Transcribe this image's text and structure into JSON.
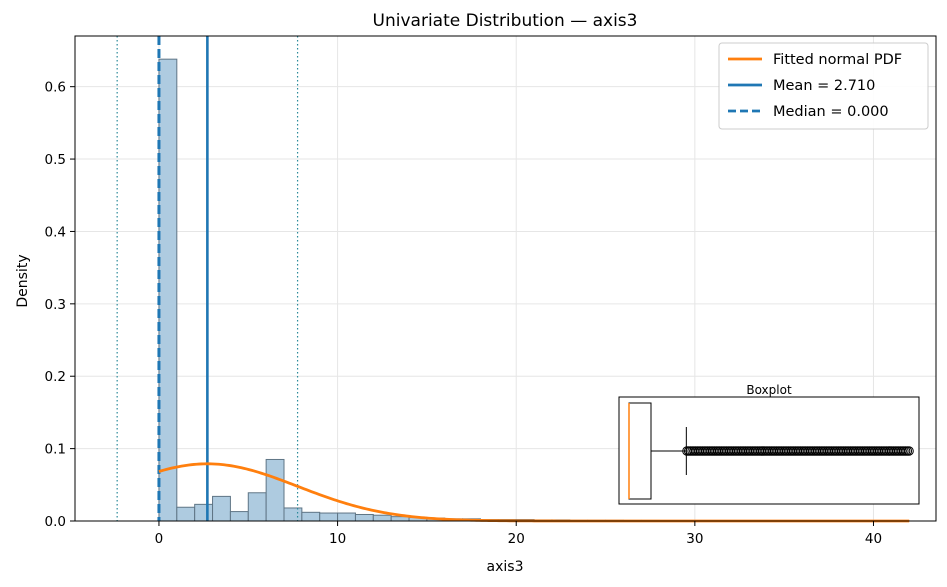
{
  "chart_data": {
    "type": "histogram",
    "title": "Univariate Distribution — axis3",
    "xlabel": "axis3",
    "ylabel": "Density",
    "xlim": [
      -4.7,
      43.5
    ],
    "ylim": [
      0,
      0.67
    ],
    "grid": true,
    "x_ticks": [
      0,
      10,
      20,
      30,
      40
    ],
    "y_ticks": [
      0.0,
      0.1,
      0.2,
      0.3,
      0.4,
      0.5,
      0.6
    ],
    "x_tick_labels": [
      "0",
      "10",
      "20",
      "30",
      "40"
    ],
    "y_tick_labels": [
      "0.0",
      "0.1",
      "0.2",
      "0.3",
      "0.4",
      "0.5",
      "0.6"
    ],
    "histogram": {
      "bin_start": 0,
      "bin_width": 1.0,
      "densities": [
        0.638,
        0.019,
        0.023,
        0.034,
        0.013,
        0.039,
        0.085,
        0.018,
        0.012,
        0.011,
        0.011,
        0.009,
        0.008,
        0.006,
        0.005,
        0.004,
        0.003,
        0.003,
        0.002,
        0.002,
        0.002,
        0.0015,
        0.0015,
        0.001,
        0.001,
        0.001,
        0.0008,
        0.0008,
        0.0006,
        0.0006,
        0.0005,
        0.0005,
        0.0004,
        0.0004,
        0.0004,
        0.0003,
        0.0003,
        0.0003,
        0.0003,
        0.0002,
        0.0002,
        0.0002
      ],
      "fill_color": "#aecbe0",
      "edge_color": "#5f7585"
    },
    "fitted_normal": {
      "mean": 2.71,
      "sd": 5.05,
      "x_range": [
        0,
        42
      ],
      "color": "#ff7f0e"
    },
    "mean": 2.71,
    "median": 0.0,
    "sd_lines": [
      -2.34,
      7.76
    ],
    "sd_line_color": "#2a8a9a",
    "line_color": "#1f77b4",
    "legend": {
      "position": "upper right",
      "entries": [
        {
          "label": "Fitted normal PDF",
          "style": "solid",
          "color": "#ff7f0e"
        },
        {
          "label": "Mean = 2.710",
          "style": "solid",
          "color": "#1f77b4"
        },
        {
          "label": "Median = 0.000",
          "style": "dashed",
          "color": "#1f77b4"
        }
      ]
    },
    "inset_boxplot": {
      "title": "Boxplot",
      "orientation": "horizontal",
      "median": 0.0,
      "q1": 0.0,
      "q3": 3.3,
      "whisker_low": 0.0,
      "whisker_high": 8.6,
      "outlier_range": [
        8.6,
        42.0
      ],
      "xlim": [
        -1.5,
        43.5
      ],
      "median_color": "#ff7f0e"
    }
  }
}
